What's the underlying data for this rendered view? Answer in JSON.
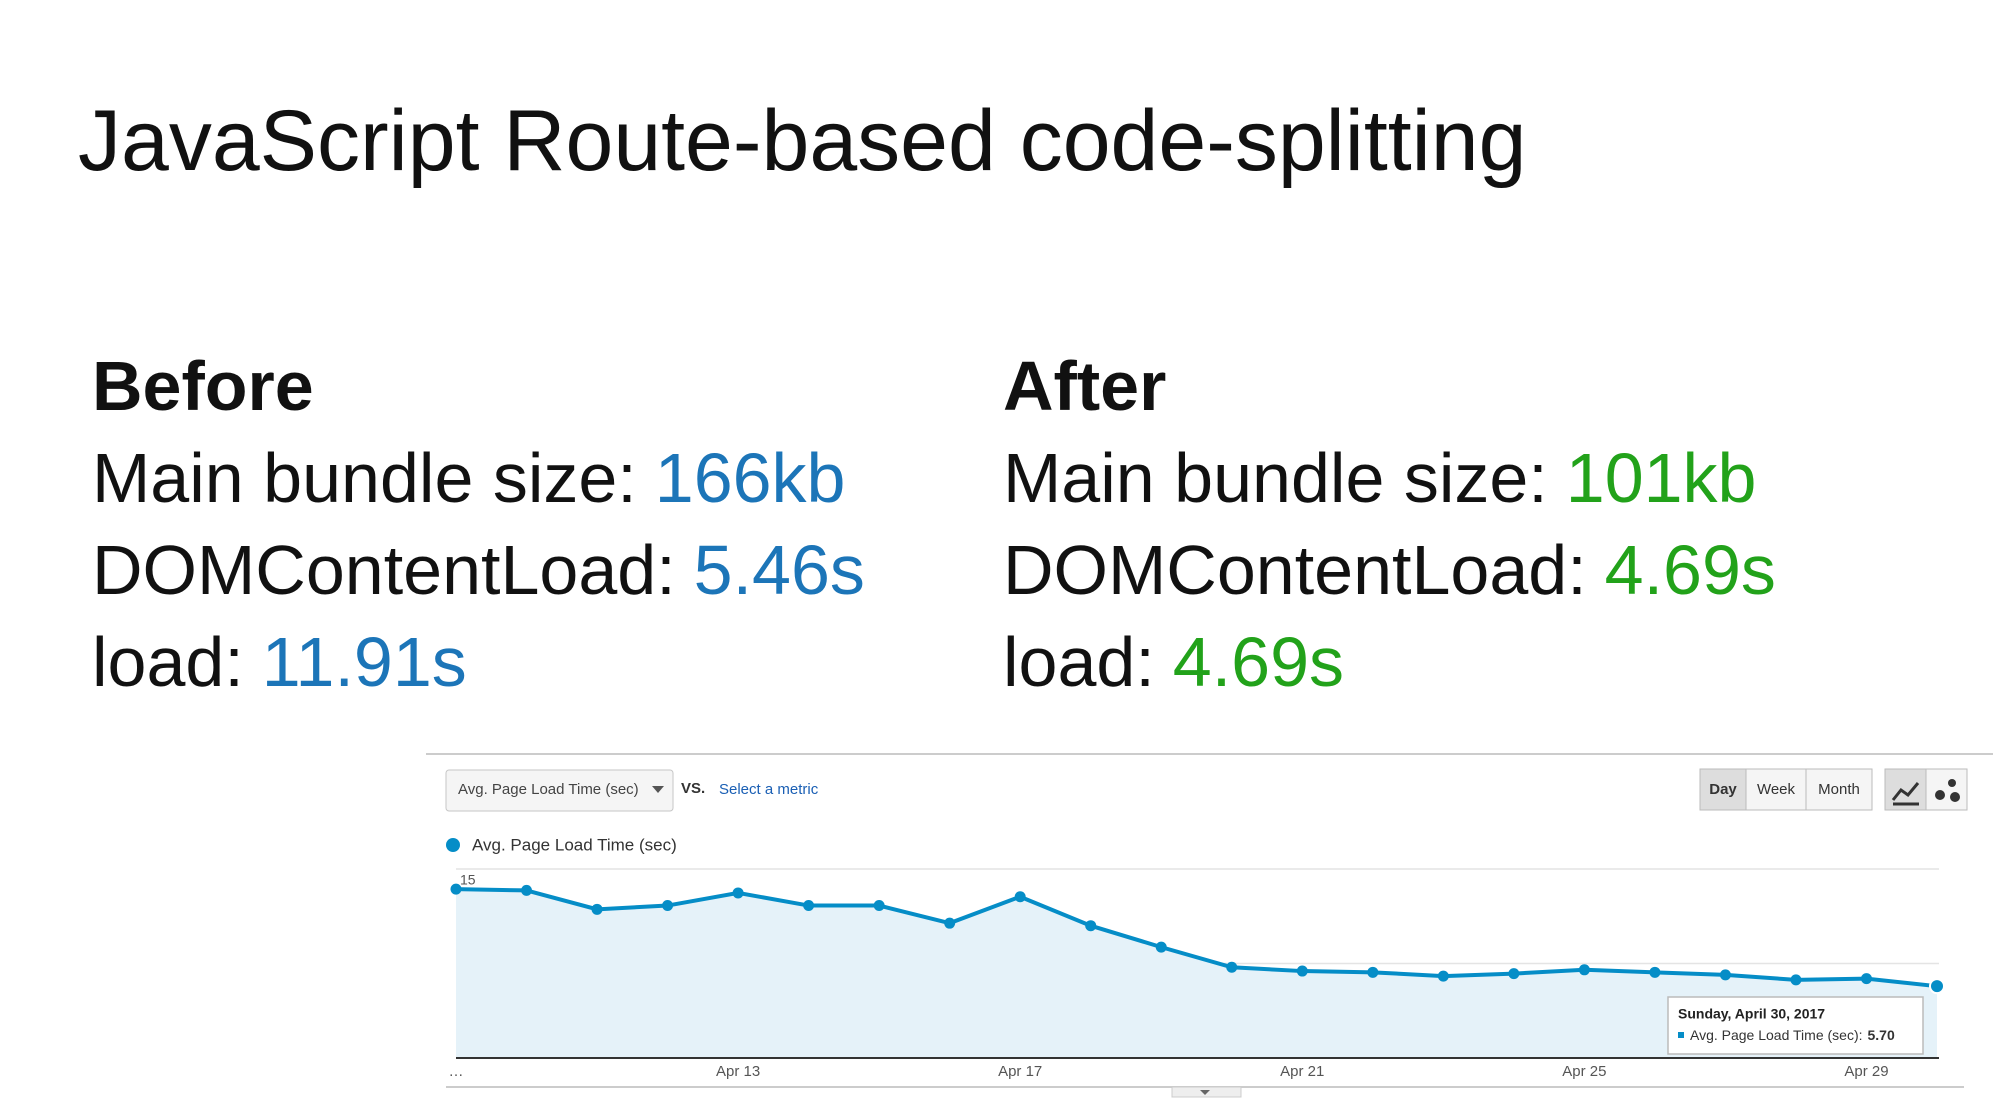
{
  "title": "JavaScript Route-based code-splitting",
  "before": {
    "heading": "Before",
    "rows": [
      {
        "label": "Main bundle size:",
        "value": "166kb"
      },
      {
        "label": "DOMContentLoad:",
        "value": "5.46s"
      },
      {
        "label": "load:",
        "value": "11.91s"
      }
    ]
  },
  "after": {
    "heading": "After",
    "rows": [
      {
        "label": "Main bundle size:",
        "value": "101kb"
      },
      {
        "label": "DOMContentLoad:",
        "value": "4.69s"
      },
      {
        "label": "load:",
        "value": "4.69s"
      }
    ]
  },
  "toolbar": {
    "metric": "Avg. Page Load Time (sec)",
    "vs": "VS.",
    "select": "Select a metric",
    "buttons": [
      "Day",
      "Week",
      "Month"
    ]
  },
  "chart_data": {
    "type": "area",
    "categories": [
      "…",
      null,
      null,
      null,
      "Apr 13",
      null,
      null,
      null,
      "Apr 17",
      null,
      null,
      null,
      "Apr 21",
      null,
      null,
      null,
      "Apr 25",
      null,
      null,
      null,
      "Apr 29",
      null
    ],
    "series": [
      {
        "name": "Avg. Page Load Time (sec)",
        "color": "#058dc7",
        "values": [
          13.4,
          13.3,
          11.8,
          12.1,
          13.1,
          12.1,
          12.1,
          10.7,
          12.8,
          10.5,
          8.8,
          7.2,
          6.9,
          6.8,
          6.5,
          6.7,
          7.0,
          6.8,
          6.6,
          6.2,
          6.3,
          5.7
        ]
      }
    ],
    "ylim": [
      0,
      15
    ],
    "yticks": [
      7.5,
      15
    ],
    "grid": true,
    "tooltip": {
      "title": "Sunday, April 30, 2017",
      "metric": "Avg. Page Load Time (sec):",
      "value_label": "5.70"
    }
  }
}
